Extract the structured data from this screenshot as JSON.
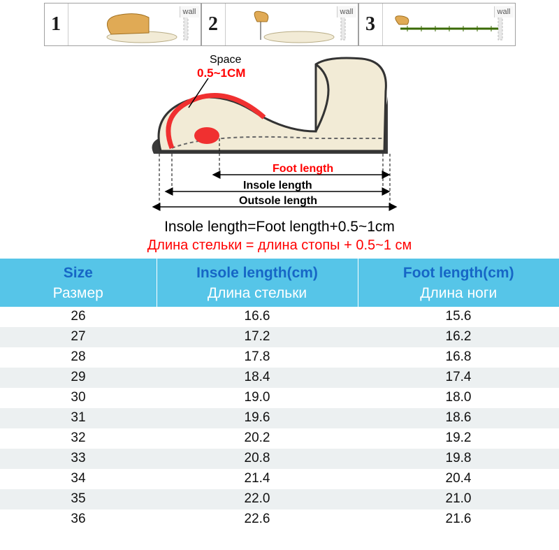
{
  "steps": {
    "wall_label": "wall",
    "items": [
      {
        "num": "1"
      },
      {
        "num": "2"
      },
      {
        "num": "3"
      }
    ]
  },
  "diagram": {
    "space_label": "Space",
    "space_value": "0.5~1CM",
    "foot_label": "Foot length",
    "insole_label": "Insole length",
    "outsole_label": "Outsole length",
    "colors": {
      "foot_label": "#ff0000",
      "insole_label": "#000000",
      "outsole_label": "#000000",
      "space_label": "#000000",
      "space_value": "#ff0000",
      "shoe_outline": "#333333",
      "shoe_fill": "#f2ebd6",
      "sole_fill": "#3a3a3a",
      "space_arc": "#f03030",
      "arrow": "#000000"
    }
  },
  "caption": {
    "line1": "Insole length=Foot length+0.5~1cm",
    "line2": "Длина стельки = длина стопы + 0.5~1 см"
  },
  "table": {
    "header": {
      "size_en": "Size",
      "size_ru": "Размер",
      "insole_en": "Insole length(cm)",
      "insole_ru": "Длина стельки",
      "foot_en": "Foot length(cm)",
      "foot_ru": "Длина ноги"
    },
    "colors": {
      "header_bg": "#56c5e8",
      "header_en": "#1666c6",
      "header_ru": "#ffffff",
      "row_alt_bg": "#ecf0f1"
    },
    "rows": [
      {
        "size": "26",
        "insole": "16.6",
        "foot": "15.6"
      },
      {
        "size": "27",
        "insole": "17.2",
        "foot": "16.2"
      },
      {
        "size": "28",
        "insole": "17.8",
        "foot": "16.8"
      },
      {
        "size": "29",
        "insole": "18.4",
        "foot": "17.4"
      },
      {
        "size": "30",
        "insole": "19.0",
        "foot": "18.0"
      },
      {
        "size": "31",
        "insole": "19.6",
        "foot": "18.6"
      },
      {
        "size": "32",
        "insole": "20.2",
        "foot": "19.2"
      },
      {
        "size": "33",
        "insole": "20.8",
        "foot": "19.8"
      },
      {
        "size": "34",
        "insole": "21.4",
        "foot": "20.4"
      },
      {
        "size": "35",
        "insole": "22.0",
        "foot": "21.0"
      },
      {
        "size": "36",
        "insole": "22.6",
        "foot": "21.6"
      }
    ]
  }
}
